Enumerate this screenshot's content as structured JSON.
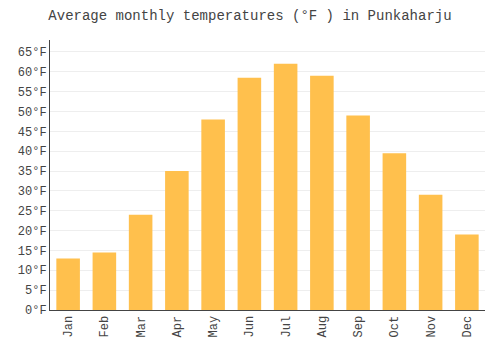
{
  "chart_data": {
    "type": "bar",
    "title": "Average monthly temperatures (°F ) in Punkaharju",
    "categories": [
      "Jan",
      "Feb",
      "Mar",
      "Apr",
      "May",
      "Jun",
      "Jul",
      "Aug",
      "Sep",
      "Oct",
      "Nov",
      "Dec"
    ],
    "values": [
      13,
      14.5,
      24,
      35,
      48,
      58.5,
      62,
      59,
      49,
      39.5,
      29,
      19
    ],
    "color": "#FFC04D",
    "ylim": [
      0,
      68
    ],
    "yticks": [
      {
        "value": 0,
        "label": "0°F"
      },
      {
        "value": 5,
        "label": "5°F"
      },
      {
        "value": 10,
        "label": "10°F"
      },
      {
        "value": 15,
        "label": "15°F"
      },
      {
        "value": 20,
        "label": "20°F"
      },
      {
        "value": 25,
        "label": "25°F"
      },
      {
        "value": 30,
        "label": "30°F"
      },
      {
        "value": 35,
        "label": "35°F"
      },
      {
        "value": 40,
        "label": "40°F"
      },
      {
        "value": 45,
        "label": "45°F"
      },
      {
        "value": 50,
        "label": "50°F"
      },
      {
        "value": 55,
        "label": "55°F"
      },
      {
        "value": 60,
        "label": "60°F"
      },
      {
        "value": 65,
        "label": "65°F"
      }
    ],
    "grid": true
  }
}
